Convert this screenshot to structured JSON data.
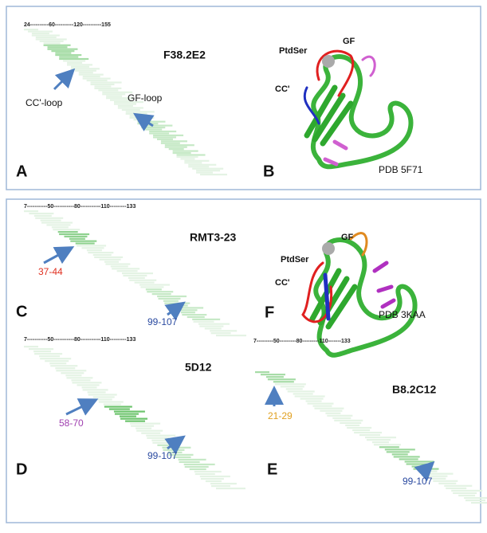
{
  "panels": [
    {
      "letter": "A",
      "ruler": "24----------60----------120----------155",
      "title": "F38.2E2",
      "annotations": [
        "CC'-loop",
        "GF-loop"
      ]
    },
    {
      "letter": "B",
      "structure_labels": [
        "PtdSer",
        "GF",
        "CC'"
      ],
      "pdb": "PDB 5F71"
    },
    {
      "letter": "C",
      "ruler": "7-----------50-----------80-----------110---------133",
      "title": "RMT3-23",
      "annotations": [
        "37-44",
        "99-107"
      ]
    },
    {
      "letter": "F",
      "structure_labels": [
        "PtdSer",
        "GF",
        "CC'"
      ],
      "pdb": "PDB 3KAA"
    },
    {
      "letter": "D",
      "ruler": "7-----------50-----------80-----------110---------133",
      "title": "5D12",
      "annotations": [
        "58-70",
        "99-107"
      ]
    },
    {
      "letter": "E",
      "ruler": "7---------50---------80---------110-------133",
      "title": "B8.2C12",
      "annotations": [
        "21-29",
        "99-107"
      ]
    }
  ]
}
